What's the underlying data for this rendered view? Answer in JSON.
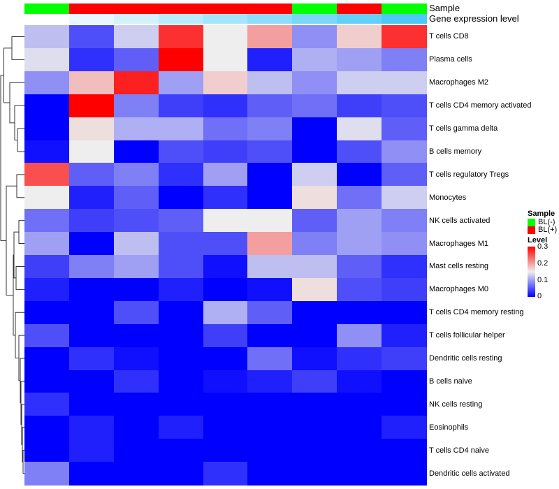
{
  "chart_data": {
    "type": "heatmap",
    "title": "",
    "columns": 9,
    "annotations": {
      "sample_label": "Sample",
      "sample": [
        "BL(-)",
        "BL(+)",
        "BL(+)",
        "BL(+)",
        "BL(+)",
        "BL(+)",
        "BL(-)",
        "BL(+)",
        "BL(-)"
      ],
      "expression_label": "Gene expression level",
      "expression_rank": [
        0,
        1,
        2,
        3,
        4,
        5,
        6,
        7,
        8
      ]
    },
    "rows": [
      "T cells CD8",
      "Plasma cells",
      "Macrophages M2",
      "T cells CD4 memory activated",
      "T cells gamma delta",
      "B cells memory",
      "T cells regulatory  Tregs",
      "Monocytes",
      "NK cells activated",
      "Macrophages M1",
      "Mast cells resting",
      "Macrophages M0",
      "T cells CD4 memory resting",
      "T cells follicular helper",
      "Dendritic cells resting",
      "B cells naive",
      "NK cells resting",
      "Eosinophils",
      "T cells CD4 naive",
      "Dendritic cells activated"
    ],
    "values": [
      [
        0.12,
        0.05,
        0.13,
        0.27,
        0.15,
        0.2,
        0.09,
        0.17,
        0.27
      ],
      [
        0.14,
        0.03,
        0.06,
        0.3,
        0.15,
        0.02,
        0.11,
        0.1,
        0.08
      ],
      [
        0.09,
        0.18,
        0.28,
        0.1,
        0.17,
        0.12,
        0.09,
        0.13,
        0.13
      ],
      [
        0.0,
        0.3,
        0.08,
        0.04,
        0.03,
        0.06,
        0.07,
        0.04,
        0.05
      ],
      [
        0.0,
        0.16,
        0.11,
        0.11,
        0.07,
        0.08,
        0.0,
        0.14,
        0.06
      ],
      [
        0.01,
        0.15,
        0.0,
        0.05,
        0.04,
        0.05,
        0.0,
        0.05,
        0.09
      ],
      [
        0.25,
        0.06,
        0.08,
        0.03,
        0.1,
        0.0,
        0.13,
        0.0,
        0.06
      ],
      [
        0.15,
        0.02,
        0.06,
        0.0,
        0.03,
        0.0,
        0.16,
        0.07,
        0.13
      ],
      [
        0.07,
        0.04,
        0.05,
        0.06,
        0.15,
        0.15,
        0.06,
        0.1,
        0.08
      ],
      [
        0.1,
        0.0,
        0.12,
        0.05,
        0.05,
        0.2,
        0.08,
        0.1,
        0.09
      ],
      [
        0.04,
        0.08,
        0.1,
        0.05,
        0.01,
        0.12,
        0.12,
        0.06,
        0.03
      ],
      [
        0.02,
        0.0,
        0.0,
        0.02,
        0.0,
        0.01,
        0.16,
        0.05,
        0.04
      ],
      [
        0.0,
        0.0,
        0.05,
        0.0,
        0.11,
        0.06,
        0.0,
        0.0,
        0.0
      ],
      [
        0.05,
        0.0,
        0.0,
        0.0,
        0.04,
        0.0,
        0.0,
        0.09,
        0.02
      ],
      [
        0.0,
        0.03,
        0.01,
        0.0,
        0.0,
        0.07,
        0.01,
        0.03,
        0.04
      ],
      [
        0.0,
        0.0,
        0.03,
        0.0,
        0.01,
        0.02,
        0.04,
        0.01,
        0.0
      ],
      [
        0.03,
        0.0,
        0.0,
        0.0,
        0.0,
        0.0,
        0.0,
        0.0,
        0.0
      ],
      [
        0.0,
        0.02,
        0.0,
        0.02,
        0.0,
        0.0,
        0.0,
        0.0,
        0.02
      ],
      [
        0.0,
        0.02,
        0.0,
        0.0,
        0.0,
        0.0,
        0.0,
        0.0,
        0.0
      ],
      [
        0.08,
        0.0,
        0.0,
        0.0,
        0.03,
        0.0,
        0.0,
        0.0,
        0.0
      ]
    ],
    "color_range": [
      0,
      0.3
    ],
    "legend": {
      "sample_title": "Sample",
      "sample_entries": [
        {
          "label": "BL(-)",
          "color": "#00FF00"
        },
        {
          "label": "BL(+)",
          "color": "#FF0000"
        }
      ],
      "level_title": "Level",
      "level_ticks": [
        "0.3",
        "0.2",
        "0.1",
        "0"
      ],
      "placement": "right"
    },
    "colors": {
      "low": "#0000FF",
      "mid": "#EEEEEE",
      "high": "#FF0000",
      "expr_low": "#FFFFFF",
      "expr_high": "#4DC9F6"
    }
  }
}
